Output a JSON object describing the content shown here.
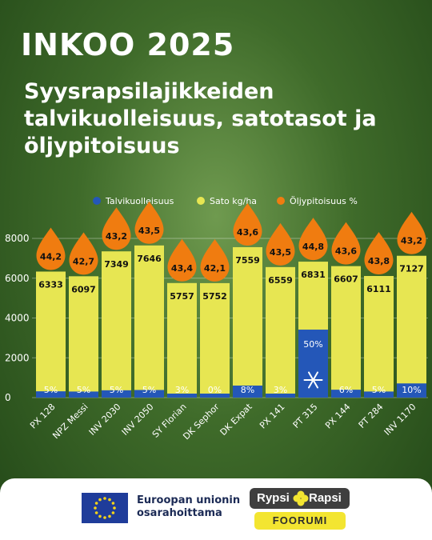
{
  "title": "INKOO 2025",
  "subtitle": "Syysrapsilajikkeiden talvikuolleisuus, satotasot ja öljypitoisuus",
  "colors": {
    "winter": "#2457b8",
    "yield": "#e7e652",
    "oil": "#f07c10"
  },
  "chart_data": {
    "type": "bar",
    "categories": [
      "PX 128",
      "NPZ Messi",
      "INV 2030",
      "INV 2050",
      "SY Florian",
      "DK Sephor",
      "DK Expat",
      "PX 141",
      "PT 315",
      "PX 144",
      "PT 284",
      "INV 1170"
    ],
    "ylim": [
      0,
      8000
    ],
    "yticks": [
      "0",
      "2000",
      "4000",
      "6000",
      "8000"
    ],
    "legend": [
      "Talvikuolleisuus",
      "Sato kg/ha",
      "Öljypitoisuus %"
    ],
    "legend_position": "top",
    "series": [
      {
        "name": "Sato kg/ha",
        "values": [
          6333,
          6097,
          7349,
          7646,
          5757,
          5752,
          7559,
          6559,
          6831,
          6607,
          6111,
          7127
        ],
        "labels": [
          "6333",
          "6097",
          "7349",
          "7646",
          "5757",
          "5752",
          "7559",
          "6559",
          "6831",
          "6607",
          "6111",
          "7127"
        ]
      },
      {
        "name": "Talvikuolleisuus",
        "values": [
          5,
          5,
          5,
          5,
          3,
          0,
          8,
          3,
          50,
          6,
          5,
          10
        ],
        "labels": [
          "5%",
          "5%",
          "5%",
          "5%",
          "3%",
          "0%",
          "8%",
          "3%",
          "50%",
          "6%",
          "5%",
          "10%"
        ]
      },
      {
        "name": "Öljypitoisuus %",
        "values": [
          44.2,
          42.7,
          43.2,
          43.5,
          43.4,
          42.1,
          43.6,
          43.5,
          44.8,
          43.6,
          43.8,
          43.2
        ],
        "labels": [
          "44,2",
          "42,7",
          "43,2",
          "43,5",
          "43,4",
          "42,1",
          "43,6",
          "43,5",
          "44,8",
          "43,6",
          "43,8",
          "43,2"
        ]
      }
    ]
  },
  "footer": {
    "eu_line1": "Euroopan unionin",
    "eu_line2": "osarahoittama",
    "logo_word1": "Rypsi",
    "logo_word2": "Rapsi",
    "logo_bottom": "FOORUMI"
  }
}
